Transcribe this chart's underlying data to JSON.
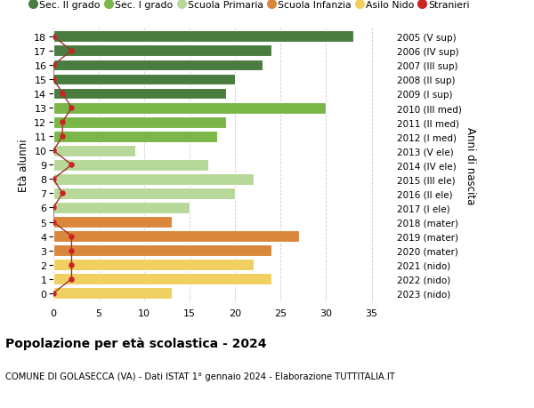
{
  "ages": [
    18,
    17,
    16,
    15,
    14,
    13,
    12,
    11,
    10,
    9,
    8,
    7,
    6,
    5,
    4,
    3,
    2,
    1,
    0
  ],
  "years": [
    "2005 (V sup)",
    "2006 (IV sup)",
    "2007 (III sup)",
    "2008 (II sup)",
    "2009 (I sup)",
    "2010 (III med)",
    "2011 (II med)",
    "2012 (I med)",
    "2013 (V ele)",
    "2014 (IV ele)",
    "2015 (III ele)",
    "2016 (II ele)",
    "2017 (I ele)",
    "2018 (mater)",
    "2019 (mater)",
    "2020 (mater)",
    "2021 (nido)",
    "2022 (nido)",
    "2023 (nido)"
  ],
  "bar_values": [
    33,
    24,
    23,
    20,
    19,
    30,
    19,
    18,
    9,
    17,
    22,
    20,
    15,
    13,
    27,
    24,
    22,
    24,
    13
  ],
  "bar_colors": [
    "#4a7c3f",
    "#4a7c3f",
    "#4a7c3f",
    "#4a7c3f",
    "#4a7c3f",
    "#7ab648",
    "#7ab648",
    "#7ab648",
    "#b8d89a",
    "#b8d89a",
    "#b8d89a",
    "#b8d89a",
    "#b8d89a",
    "#d9873a",
    "#d9873a",
    "#d9873a",
    "#f0d060",
    "#f0d060",
    "#f0d060"
  ],
  "stranieri_x": [
    0,
    2,
    0,
    0,
    1,
    2,
    1,
    1,
    0,
    2,
    0,
    1,
    0,
    0,
    2,
    2,
    2,
    2,
    0
  ],
  "legend_labels": [
    "Sec. II grado",
    "Sec. I grado",
    "Scuola Primaria",
    "Scuola Infanzia",
    "Asilo Nido",
    "Stranieri"
  ],
  "legend_colors": [
    "#4a7c3f",
    "#7ab648",
    "#b8d89a",
    "#d9873a",
    "#f0d060",
    "#cc2222"
  ],
  "ylabel_left": "Età alunni",
  "ylabel_right": "Anni di nascita",
  "title": "Popolazione per età scolastica - 2024",
  "subtitle": "COMUNE DI GOLASECCA (VA) - Dati ISTAT 1° gennaio 2024 - Elaborazione TUTTITALIA.IT",
  "xlim": [
    0,
    37
  ],
  "xticks": [
    0,
    5,
    10,
    15,
    20,
    25,
    30,
    35
  ],
  "dot_color": "#cc2222",
  "line_color": "#a03030",
  "bg_color": "#ffffff",
  "grid_color": "#cccccc"
}
